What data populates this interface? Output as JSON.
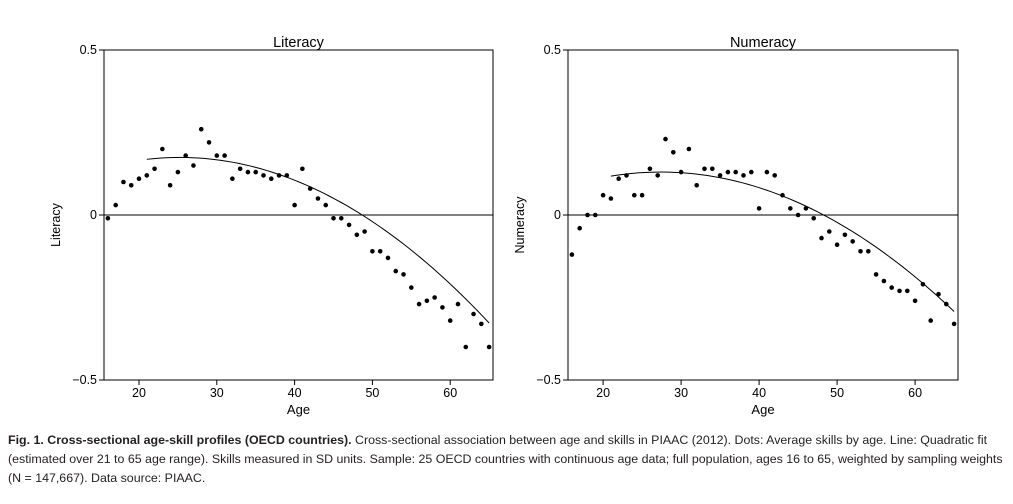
{
  "chart_data": [
    {
      "type": "scatter",
      "title": "Literacy",
      "xlabel": "Age",
      "ylabel": "Literacy",
      "xlim": [
        15.5,
        65.5
      ],
      "ylim": [
        -0.5,
        0.5
      ],
      "xticks": [
        "20",
        "30",
        "40",
        "50",
        "60"
      ],
      "yticks": [
        "0.5",
        "0",
        "−0.5"
      ],
      "reference_line_y": 0,
      "grid": false,
      "series": [
        {
          "kind": "points",
          "x": [
            16,
            17,
            18,
            19,
            20,
            21,
            22,
            23,
            24,
            25,
            26,
            27,
            28,
            29,
            30,
            31,
            32,
            33,
            34,
            35,
            36,
            37,
            38,
            39,
            40,
            41,
            42,
            43,
            44,
            45,
            46,
            47,
            48,
            49,
            50,
            51,
            52,
            53,
            54,
            55,
            56,
            57,
            58,
            59,
            60,
            61,
            62,
            63,
            64,
            65
          ],
          "y": [
            -0.01,
            0.03,
            0.1,
            0.09,
            0.11,
            0.12,
            0.14,
            0.2,
            0.09,
            0.13,
            0.18,
            0.15,
            0.26,
            0.22,
            0.18,
            0.18,
            0.11,
            0.14,
            0.13,
            0.13,
            0.12,
            0.11,
            0.12,
            0.12,
            0.03,
            0.14,
            0.08,
            0.05,
            0.03,
            -0.01,
            -0.01,
            -0.03,
            -0.06,
            -0.05,
            -0.11,
            -0.11,
            -0.13,
            -0.17,
            -0.18,
            -0.22,
            -0.27,
            -0.26,
            -0.25,
            -0.28,
            -0.32,
            -0.27,
            -0.4,
            -0.3,
            -0.33,
            -0.4
          ]
        },
        {
          "kind": "quadratic-fit",
          "x": [
            21,
            25,
            30,
            35,
            40,
            45,
            50,
            55,
            60,
            65
          ],
          "y": [
            0.173,
            0.173,
            0.163,
            0.142,
            0.106,
            0.052,
            -0.018,
            -0.105,
            -0.208,
            -0.33
          ]
        }
      ]
    },
    {
      "type": "scatter",
      "title": "Numeracy",
      "xlabel": "Age",
      "ylabel": "Numeracy",
      "xlim": [
        15.5,
        65.5
      ],
      "ylim": [
        -0.5,
        0.5
      ],
      "xticks": [
        "20",
        "30",
        "40",
        "50",
        "60"
      ],
      "yticks": [
        "0.5",
        "0",
        "−0.5"
      ],
      "reference_line_y": 0,
      "grid": false,
      "series": [
        {
          "kind": "points",
          "x": [
            16,
            17,
            18,
            19,
            20,
            21,
            22,
            23,
            24,
            25,
            26,
            27,
            28,
            29,
            30,
            31,
            32,
            33,
            34,
            35,
            36,
            37,
            38,
            39,
            40,
            41,
            42,
            43,
            44,
            45,
            46,
            47,
            48,
            49,
            50,
            51,
            52,
            53,
            54,
            55,
            56,
            57,
            58,
            59,
            60,
            61,
            62,
            63,
            64,
            65
          ],
          "y": [
            -0.12,
            -0.04,
            0.0,
            0.0,
            0.06,
            0.05,
            0.11,
            0.12,
            0.06,
            0.06,
            0.14,
            0.12,
            0.23,
            0.19,
            0.13,
            0.2,
            0.09,
            0.14,
            0.14,
            0.12,
            0.13,
            0.13,
            0.12,
            0.13,
            0.02,
            0.13,
            0.12,
            0.06,
            0.02,
            0.0,
            0.02,
            -0.01,
            -0.07,
            -0.05,
            -0.09,
            -0.06,
            -0.08,
            -0.11,
            -0.11,
            -0.18,
            -0.2,
            -0.22,
            -0.23,
            -0.23,
            -0.26,
            -0.21,
            -0.32,
            -0.24,
            -0.27,
            -0.33
          ]
        },
        {
          "kind": "quadratic-fit",
          "x": [
            21,
            25,
            30,
            35,
            40,
            45,
            50,
            55,
            60,
            65
          ],
          "y": [
            0.118,
            0.128,
            0.128,
            0.113,
            0.083,
            0.038,
            -0.022,
            -0.098,
            -0.188,
            -0.292
          ]
        }
      ]
    }
  ],
  "caption": {
    "label": "Fig. 1. Cross-sectional age-skill profiles (OECD countries).",
    "text": " Cross-sectional association between age and skills in PIAAC (2012). Dots: Average skills by age. Line: Quadratic fit (estimated over 21 to 65 age range). Skills measured in SD units. Sample: 25 OECD countries with continuous age data; full population, ages 16 to 65, weighted by sampling weights (N = 147,667). Data source: PIAAC."
  }
}
